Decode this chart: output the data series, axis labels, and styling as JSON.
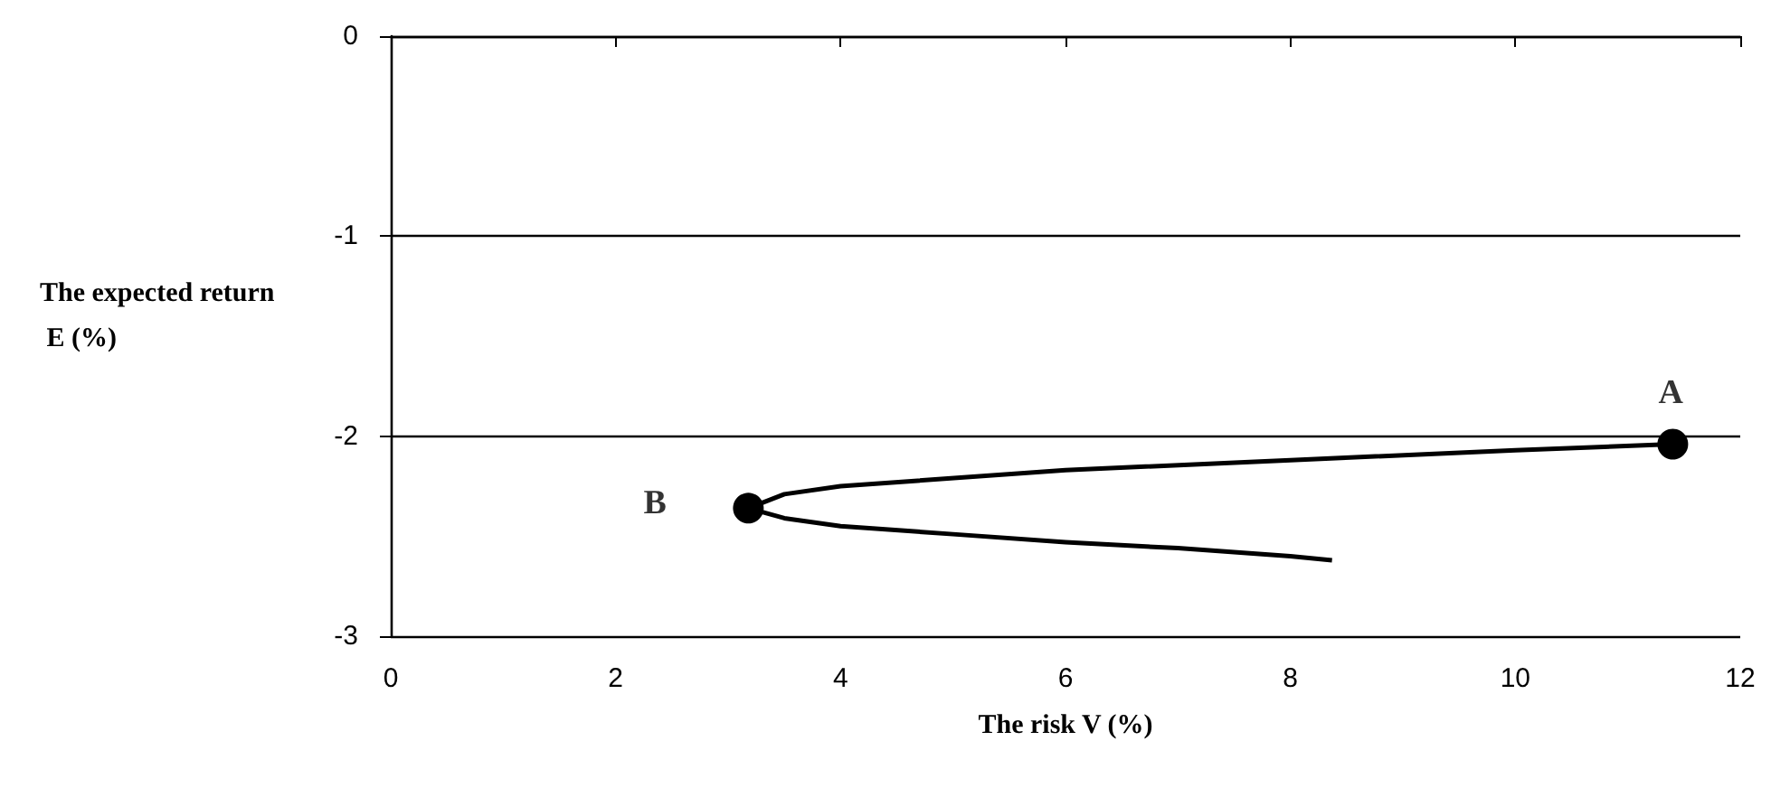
{
  "chart_data": {
    "type": "line",
    "xlabel": "The risk V (%)",
    "ylabel": "The expected return E (%)",
    "xlim": [
      0,
      12
    ],
    "xticks": [
      0,
      2,
      4,
      6,
      8,
      10,
      12
    ],
    "ylim": [
      -3,
      0
    ],
    "yticks": [
      -3,
      -2,
      -1,
      0
    ],
    "grid": "y",
    "series": [
      {
        "color": "#000000",
        "marker": "none",
        "x": [
          11.4,
          10,
          8,
          6,
          4,
          3.5,
          3.18,
          3.5,
          4,
          5,
          6,
          7,
          8,
          8.37
        ],
        "values": [
          -2.04,
          -2.07,
          -2.12,
          -2.17,
          -2.25,
          -2.29,
          -2.36,
          -2.41,
          -2.45,
          -2.49,
          -2.53,
          -2.56,
          -2.6,
          -2.62
        ]
      },
      {
        "type": "scatter",
        "color": "#000000",
        "marker": "circle",
        "x": [
          11.4,
          3.18
        ],
        "values": [
          -2.04,
          -2.36
        ]
      }
    ],
    "annotations": [
      {
        "text": "A",
        "x": 11.4,
        "y": -2.04
      },
      {
        "text": "B",
        "x": 3.18,
        "y": -2.36
      }
    ]
  }
}
